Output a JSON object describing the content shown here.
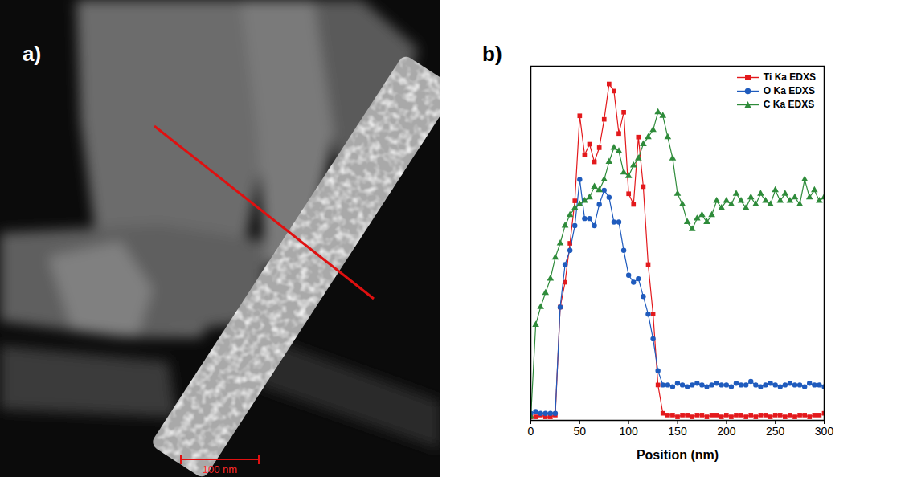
{
  "image_panel": {
    "panel_label": "a)",
    "scale_bar_label": "100 nm"
  },
  "chart_data": {
    "type": "line",
    "panel_label": "b)",
    "x_label": "Position (nm)",
    "x": [
      0,
      5,
      10,
      15,
      20,
      25,
      30,
      35,
      40,
      45,
      50,
      55,
      60,
      65,
      70,
      75,
      80,
      85,
      90,
      95,
      100,
      105,
      110,
      115,
      120,
      125,
      130,
      135,
      140,
      145,
      150,
      155,
      160,
      165,
      170,
      175,
      180,
      185,
      190,
      195,
      200,
      205,
      210,
      215,
      220,
      225,
      230,
      235,
      240,
      245,
      250,
      255,
      260,
      265,
      270,
      275,
      280,
      285,
      290,
      295,
      300
    ],
    "series": [
      {
        "name": "Ti Ka EDXS",
        "color": "#e3191c",
        "marker": "square",
        "values": [
          1,
          1,
          1.5,
          1,
          1,
          1.5,
          32,
          39,
          50,
          62,
          86,
          75,
          78,
          73,
          77,
          85,
          95,
          93,
          81,
          87,
          64,
          61,
          80,
          66,
          44,
          30,
          10,
          2,
          1.5,
          1.5,
          1,
          1.5,
          1.5,
          1,
          1.5,
          1.5,
          1,
          1.5,
          1.5,
          1,
          1.5,
          1,
          1.5,
          1.5,
          1,
          1.5,
          1,
          1.5,
          1.5,
          1,
          1.5,
          1.5,
          1,
          1.5,
          1,
          1.5,
          1.5,
          1,
          1.5,
          1.5,
          2
        ]
      },
      {
        "name": "O Ka EDXS",
        "color": "#1f5bbd",
        "marker": "circle",
        "values": [
          2,
          2.5,
          2,
          2,
          2,
          2,
          32,
          44,
          48,
          55,
          68,
          57,
          57,
          55,
          61,
          65,
          63,
          56,
          56,
          48,
          41,
          39,
          40,
          35,
          30,
          23,
          14,
          10,
          10,
          9.5,
          10.5,
          10,
          9.5,
          10,
          10.5,
          10,
          9.5,
          10,
          10.5,
          10,
          10,
          9.5,
          10.5,
          10,
          10,
          11,
          10,
          9.5,
          10,
          10.5,
          10,
          9.5,
          10,
          10.5,
          10,
          10,
          9.5,
          10.5,
          10,
          10,
          9.5
        ]
      },
      {
        "name": "C Ka EDXS",
        "color": "#2e8b3a",
        "marker": "triangle",
        "values": [
          1,
          27,
          32,
          36,
          40,
          46,
          50,
          55,
          58,
          60,
          61,
          62,
          63,
          66,
          65,
          68,
          73,
          77,
          76,
          70,
          69,
          72,
          74,
          78,
          80,
          82,
          87,
          86,
          80,
          74,
          64,
          61,
          56,
          54,
          57,
          58,
          56,
          58,
          62,
          60,
          62,
          61,
          64,
          62,
          60,
          63,
          61,
          64,
          62,
          61,
          65,
          62,
          64,
          62,
          63,
          61,
          68,
          63,
          65,
          62,
          63
        ]
      }
    ],
    "xlim": [
      0,
      300
    ],
    "xticks": [
      0,
      50,
      100,
      150,
      200,
      250,
      300
    ],
    "ylim": [
      0,
      100
    ],
    "yticks": [],
    "tick_labels": "x",
    "legend": "upper right",
    "grid": false
  }
}
